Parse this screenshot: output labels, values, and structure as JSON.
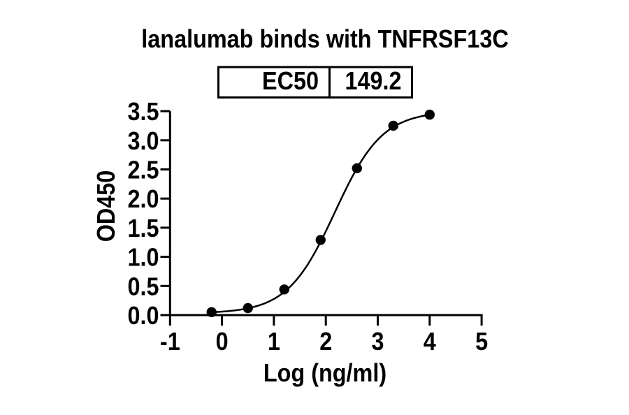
{
  "ec50_table": {
    "label": "EC50",
    "value": "149.2"
  },
  "chart_data": {
    "type": "scatter",
    "title": "lanalumab binds with TNFRSF13C",
    "xlabel": "Log (ng/ml)",
    "ylabel": "OD450",
    "x": [
      -0.2,
      0.5,
      1.2,
      1.9,
      2.6,
      3.3,
      4.0
    ],
    "y": [
      0.05,
      0.12,
      0.44,
      1.29,
      2.52,
      3.25,
      3.44
    ],
    "xlim": [
      -1,
      5
    ],
    "ylim": [
      0.0,
      3.5
    ],
    "x_ticks": [
      -1,
      0,
      1,
      2,
      3,
      4,
      5
    ],
    "x_tick_labels": [
      "-1",
      "0",
      "1",
      "2",
      "3",
      "4",
      "5"
    ],
    "y_ticks": [
      0,
      0.5,
      1,
      1.5,
      2,
      2.5,
      3,
      3.5
    ],
    "y_tick_labels": [
      "0.0",
      "0.5",
      "1.0",
      "1.5",
      "2.0",
      "2.5",
      "3.0",
      "3.5"
    ],
    "ec50": 149.2,
    "fit_curve": {
      "model": "four_parameter_logistic",
      "bottom": 0.03,
      "top": 3.5,
      "logEC50": 2.174,
      "hillslope": 0.95,
      "x_start": -0.2,
      "x_end": 4.0
    },
    "grid": false,
    "legend": "none",
    "marker": "filled-circle",
    "colors": {
      "points": "#000000",
      "curve": "#000000",
      "axes": "#000000",
      "text": "#000000",
      "background": "#ffffff"
    }
  }
}
